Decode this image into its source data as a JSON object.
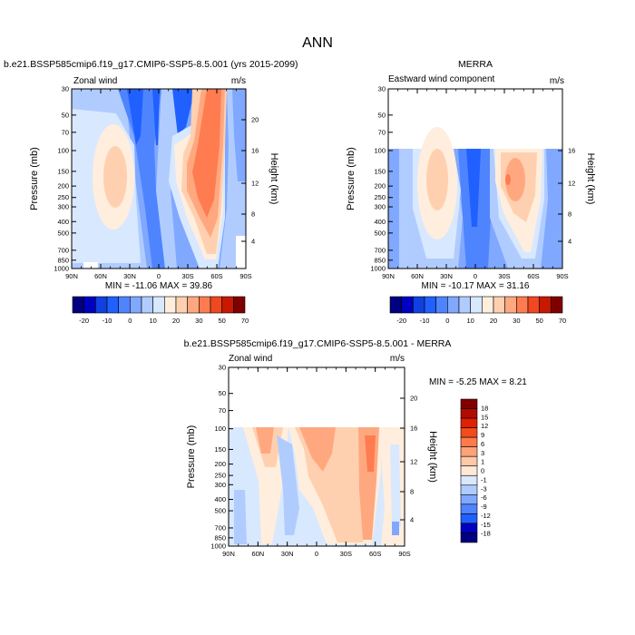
{
  "title": "ANN",
  "chart_data": [
    {
      "type": "contour",
      "title": "b.e21.BSSP585cmip6.f19_g17.CMIP6-SSP5-8.5.001 (yrs 2015-2099)",
      "left_label": "Zonal wind",
      "right_label": "m/s",
      "ylabel": "Pressure (mb)",
      "ylabel_right": "Height (km)",
      "x_ticks": [
        "90N",
        "60N",
        "30N",
        "0",
        "30S",
        "60S",
        "90S"
      ],
      "y_ticks": [
        "30",
        "50",
        "70",
        "100",
        "150",
        "200",
        "250",
        "300",
        "400",
        "500",
        "700",
        "850",
        "1000"
      ],
      "y_ticks_right": [
        "20",
        "16",
        "12",
        "8",
        "4"
      ],
      "min": "-11.06",
      "max": "39.86",
      "stats": "MIN = -11.06   MAX =  39.86",
      "colorbar_labels": [
        "-20",
        "-10",
        "0",
        "10",
        "20",
        "30",
        "50",
        "70"
      ]
    },
    {
      "type": "contour",
      "title": "MERRA",
      "left_label": "Eastward wind component",
      "right_label": "m/s",
      "ylabel": "Pressure (mb)",
      "ylabel_right": "Height (km)",
      "x_ticks": [
        "90N",
        "60N",
        "30N",
        "0",
        "30S",
        "60S",
        "90S"
      ],
      "y_ticks": [
        "30",
        "50",
        "70",
        "100",
        "150",
        "200",
        "250",
        "300",
        "400",
        "500",
        "700",
        "850",
        "1000"
      ],
      "y_ticks_right": [
        "16",
        "12",
        "8",
        "4"
      ],
      "min": "-10.17",
      "max": "31.16",
      "stats": "MIN = -10.17   MAX =  31.16",
      "colorbar_labels": [
        "-20",
        "-10",
        "0",
        "10",
        "20",
        "30",
        "50",
        "70"
      ]
    },
    {
      "type": "contour",
      "title": "b.e21.BSSP585cmip6.f19_g17.CMIP6-SSP5-8.5.001 - MERRA",
      "left_label": "Zonal wind",
      "right_label": "m/s",
      "ylabel": "Pressure (mb)",
      "ylabel_right": "Height (km)",
      "x_ticks": [
        "90N",
        "60N",
        "30N",
        "0",
        "30S",
        "60S",
        "90S"
      ],
      "y_ticks": [
        "30",
        "50",
        "70",
        "100",
        "150",
        "200",
        "250",
        "300",
        "400",
        "500",
        "700",
        "850",
        "1000"
      ],
      "y_ticks_right": [
        "20",
        "16",
        "12",
        "8",
        "4"
      ],
      "min": "-5.25",
      "max": "8.21",
      "stats": "MIN =  -5.25   MAX =   8.21",
      "colorbar_labels": [
        "18",
        "15",
        "12",
        "9",
        "6",
        "3",
        "1",
        "0",
        "-1",
        "-3",
        "-6",
        "-9",
        "-12",
        "-15",
        "-18"
      ]
    }
  ],
  "colors": {
    "main_scale": [
      "#000080",
      "#0000c0",
      "#1040e0",
      "#2060ff",
      "#4f84ff",
      "#80a8ff",
      "#b0ccff",
      "#d8e8ff",
      "#ffeedd",
      "#ffd0b0",
      "#ffa880",
      "#ff7c50",
      "#f04820",
      "#c81800",
      "#800000"
    ],
    "diff_scale": [
      "#800000",
      "#b00c00",
      "#e02000",
      "#f24c1c",
      "#ff7a4a",
      "#ffa278",
      "#ffc8a8",
      "#ffe8d6",
      "#d8e8ff",
      "#b0ccff",
      "#80a8ff",
      "#4f84ff",
      "#2060ff",
      "#0000c0",
      "#000080"
    ]
  }
}
